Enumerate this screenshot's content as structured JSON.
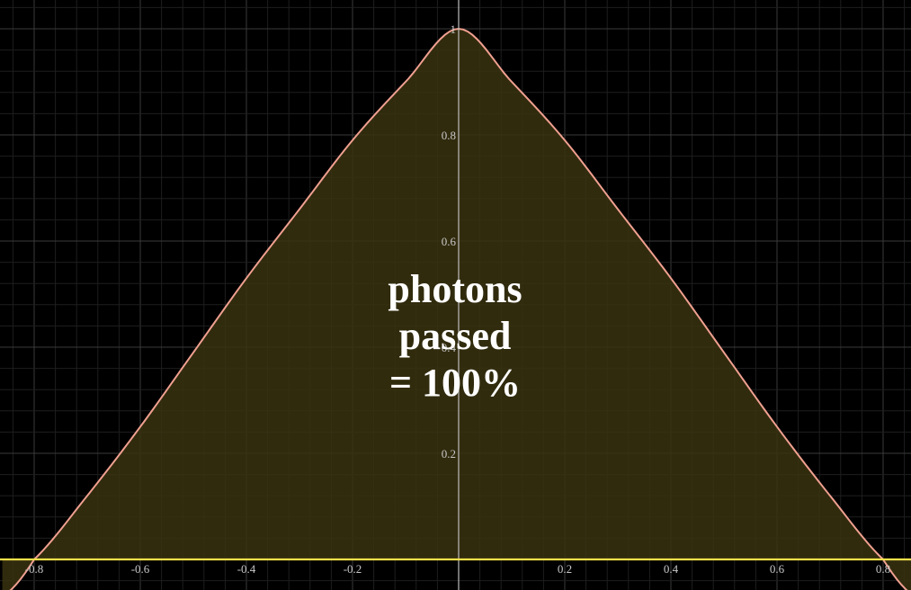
{
  "chart_data": {
    "type": "area",
    "title": "",
    "xlabel": "",
    "ylabel": "",
    "xlim": [
      -0.86,
      0.86
    ],
    "ylim": [
      -0.06,
      1.05
    ],
    "grid": true,
    "x_ticks": [
      -0.8,
      -0.6,
      -0.4,
      -0.2,
      0.2,
      0.4,
      0.6,
      0.8
    ],
    "x_tick_labels": [
      "-0.8",
      "-0.6",
      "-0.4",
      "-0.2",
      "0.2",
      "0.4",
      "0.6",
      "0.8"
    ],
    "y_ticks": [
      0.2,
      0.4,
      0.6,
      0.8,
      1
    ],
    "y_tick_labels": [
      "0.2",
      "0.4",
      "0.6",
      "0.8",
      "1"
    ],
    "series": [
      {
        "color": "#f0a090",
        "fill": "#3a3210",
        "x": [
          -0.86,
          -0.8,
          -0.7,
          -0.6,
          -0.5,
          -0.4,
          -0.3,
          -0.2,
          -0.1,
          0,
          0.1,
          0.2,
          0.3,
          0.4,
          0.5,
          0.6,
          0.7,
          0.8,
          0.86
        ],
        "y": [
          -0.07,
          0.0,
          0.12,
          0.25,
          0.39,
          0.53,
          0.66,
          0.79,
          0.9,
          1.0,
          0.9,
          0.79,
          0.66,
          0.53,
          0.39,
          0.25,
          0.12,
          0.0,
          -0.07
        ]
      }
    ],
    "baseline": {
      "y": 0,
      "color": "#f5e04a"
    },
    "annotation": {
      "lines": [
        "photons",
        "passed",
        "= 100%"
      ],
      "x": 0,
      "y": 0.42,
      "color": "#ffffff"
    }
  },
  "colors": {
    "background": "#000000",
    "grid_minor": "#1e1e1e",
    "grid_major": "#3a3a3a",
    "axis": "#bdbdbd"
  }
}
